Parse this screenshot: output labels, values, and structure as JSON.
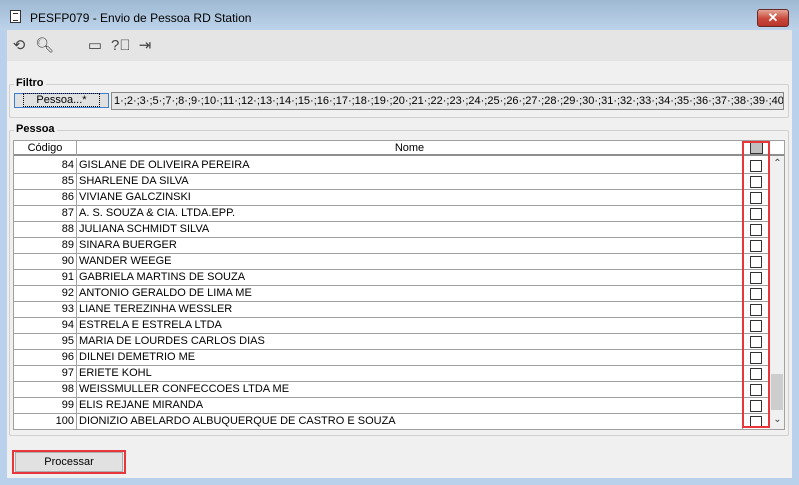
{
  "window": {
    "title": "PESFP079 - Envio de Pessoa RD Station",
    "close_icon": "close-icon"
  },
  "toolbar": {
    "icons": [
      "undo-icon",
      "search-icon",
      "calendar-icon",
      "help-icon",
      "exit-icon"
    ]
  },
  "filtro": {
    "label": "Filtro",
    "button": "Pessoa...*",
    "value": "1·;2·;3·;5·;7·;8·;9·;10·;11·;12·;13·;14·;15·;16·;17·;18·;19·;20·;21·;22·;23·;24·;25·;26·;27·;28·;29·;30·;31·;32·;33·;34·;35·;36·;37·;38·;39·;40"
  },
  "pessoa": {
    "label": "Pessoa",
    "columns": [
      "Código",
      "Nome"
    ],
    "rows": [
      {
        "code": "84",
        "name": "GISLANE DE OLIVEIRA PEREIRA",
        "checked": false
      },
      {
        "code": "85",
        "name": "SHARLENE DA SILVA",
        "checked": false
      },
      {
        "code": "86",
        "name": "VIVIANE GALCZINSKI",
        "checked": false
      },
      {
        "code": "87",
        "name": "A. S. SOUZA & CIA. LTDA.EPP.",
        "checked": false
      },
      {
        "code": "88",
        "name": "JULIANA SCHMIDT SILVA",
        "checked": false
      },
      {
        "code": "89",
        "name": "SINARA BUERGER",
        "checked": false
      },
      {
        "code": "90",
        "name": "WANDER WEEGE",
        "checked": false
      },
      {
        "code": "91",
        "name": "GABRIELA MARTINS DE SOUZA",
        "checked": false
      },
      {
        "code": "92",
        "name": "ANTONIO GERALDO DE LIMA ME",
        "checked": false
      },
      {
        "code": "93",
        "name": "LIANE TEREZINHA WESSLER",
        "checked": false
      },
      {
        "code": "94",
        "name": "ESTRELA E ESTRELA LTDA",
        "checked": false
      },
      {
        "code": "95",
        "name": "MARIA DE LOURDES CARLOS DIAS",
        "checked": false
      },
      {
        "code": "96",
        "name": "DILNEI DEMETRIO ME",
        "checked": false
      },
      {
        "code": "97",
        "name": "ERIETE KOHL",
        "checked": false
      },
      {
        "code": "98",
        "name": "WEISSMULLER CONFECCOES LTDA ME",
        "checked": false
      },
      {
        "code": "99",
        "name": "ELIS REJANE MIRANDA",
        "checked": false
      },
      {
        "code": "100",
        "name": "DIONIZIO ABELARDO ALBUQUERQUE DE CASTRO E SOUZA",
        "checked": false
      }
    ]
  },
  "actions": {
    "process": "Processar"
  },
  "colors": {
    "highlight": "#e8373a",
    "accent": "#3c7fd0"
  }
}
